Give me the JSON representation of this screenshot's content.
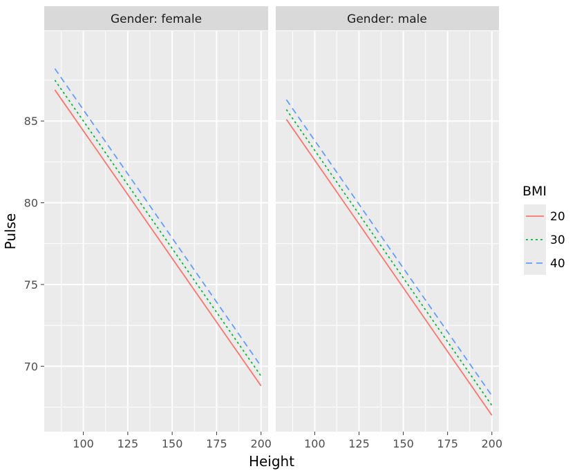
{
  "chart_data": {
    "type": "line",
    "xlabel": "Height",
    "ylabel": "Pulse",
    "xlim": [
      78,
      204
    ],
    "ylim": [
      66.0,
      90.5
    ],
    "x_ticks": [
      100,
      125,
      150,
      175,
      200
    ],
    "y_ticks": [
      70,
      75,
      80,
      85
    ],
    "grid": true,
    "legend": {
      "title": "BMI",
      "position": "right",
      "entries": [
        {
          "label": "20",
          "color": "#F8766D",
          "dash": "solid"
        },
        {
          "label": "30",
          "color": "#00BA38",
          "dash": "dotted"
        },
        {
          "label": "40",
          "color": "#619CFF",
          "dash": "dashed"
        }
      ]
    },
    "panels": [
      {
        "strip": "Gender: female",
        "series": [
          {
            "name": "20",
            "x": [
              84,
              200
            ],
            "y": [
              86.9,
              68.8
            ]
          },
          {
            "name": "30",
            "x": [
              84,
              200
            ],
            "y": [
              87.5,
              69.4
            ]
          },
          {
            "name": "40",
            "x": [
              84,
              200
            ],
            "y": [
              88.2,
              70.0
            ]
          }
        ]
      },
      {
        "strip": "Gender: male",
        "series": [
          {
            "name": "20",
            "x": [
              84,
              200
            ],
            "y": [
              85.1,
              67.0
            ]
          },
          {
            "name": "30",
            "x": [
              84,
              200
            ],
            "y": [
              85.7,
              67.6
            ]
          },
          {
            "name": "40",
            "x": [
              84,
              200
            ],
            "y": [
              86.3,
              68.2
            ]
          }
        ]
      }
    ]
  }
}
